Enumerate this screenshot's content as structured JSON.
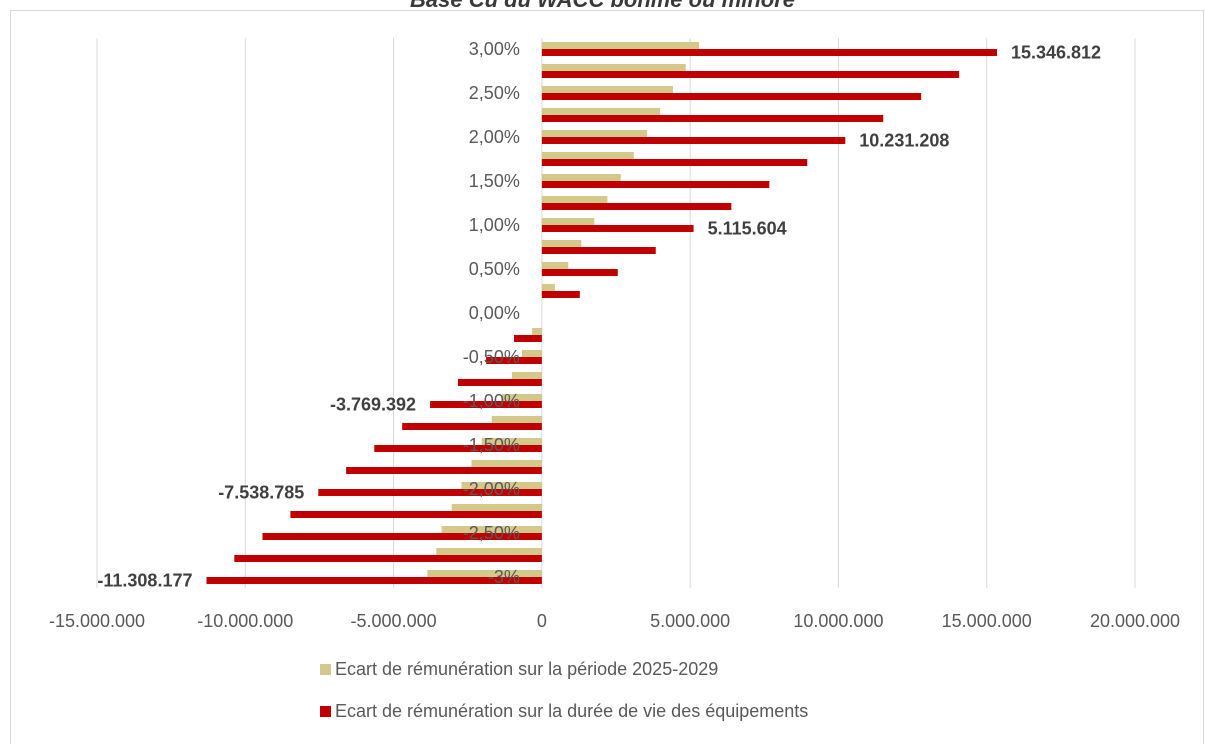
{
  "chart_data": {
    "type": "bar",
    "orientation": "horizontal",
    "title": "Base Cu du WACC bonifié ou minoré",
    "categories": [
      "3,00%",
      "2,75%",
      "2,50%",
      "2,25%",
      "2,00%",
      "1,75%",
      "1,50%",
      "1,25%",
      "1,00%",
      "0,75%",
      "0,50%",
      "0,25%",
      "0,00%",
      "-0,25%",
      "-0,50%",
      "-0,75%",
      "-1,00%",
      "-1,25%",
      "-1,50%",
      "-1,75%",
      "-2,00%",
      "-2,25%",
      "-2,50%",
      "-2,75%",
      "-3%"
    ],
    "category_labels": [
      "3,00%",
      "",
      "2,50%",
      "",
      "2,00%",
      "",
      "1,50%",
      "",
      "1,00%",
      "",
      "0,50%",
      "",
      "0,00%",
      "",
      "-0,50%",
      "",
      "-1,00%",
      "",
      "-1,50%",
      "",
      "-2,00%",
      "",
      "-2,50%",
      "",
      "-3%"
    ],
    "series": [
      {
        "name": "Ecart de rémunération sur la période 2025-2029",
        "color": "#d4c88a",
        "values": [
          5300000,
          4850000,
          4420000,
          3990000,
          3550000,
          3100000,
          2660000,
          2210000,
          1770000,
          1330000,
          890000,
          440000,
          0,
          -330000,
          -670000,
          -1010000,
          -1350000,
          -1690000,
          -2030000,
          -2370000,
          -2710000,
          -3040000,
          -3380000,
          -3560000,
          -3860000
        ]
      },
      {
        "name": "Ecart de rémunération sur la durée de vie des équipements",
        "color": "#c00000",
        "values": [
          15346812,
          14070000,
          12790000,
          11510000,
          10231208,
          8950000,
          7670000,
          6390000,
          5115604,
          3840000,
          2560000,
          1280000,
          0,
          -940000,
          -1880000,
          -2830000,
          -3769392,
          -4710000,
          -5650000,
          -6600000,
          -7538785,
          -8480000,
          -9420000,
          -10370000,
          -11308177
        ]
      }
    ],
    "data_labels": [
      {
        "category": "3,00%",
        "series": 1,
        "text": "15.346.812"
      },
      {
        "category": "2,00%",
        "series": 1,
        "text": "10.231.208"
      },
      {
        "category": "1,00%",
        "series": 1,
        "text": "5.115.604"
      },
      {
        "category": "-1,00%",
        "series": 1,
        "text": "-3.769.392"
      },
      {
        "category": "-2,00%",
        "series": 1,
        "text": "-7.538.785"
      },
      {
        "category": "-3%",
        "series": 1,
        "text": "-11.308.177"
      }
    ],
    "x_ticks": [
      -15000000,
      -10000000,
      -5000000,
      0,
      5000000,
      10000000,
      15000000,
      20000000
    ],
    "x_tick_labels": [
      "-15.000.000",
      "-10.000.000",
      "-5.000.000",
      "0",
      "5.000.000",
      "10.000.000",
      "15.000.000",
      "20.000.000"
    ],
    "xlim": [
      -15000000,
      20000000
    ],
    "grid": true,
    "legend_position": "bottom"
  }
}
